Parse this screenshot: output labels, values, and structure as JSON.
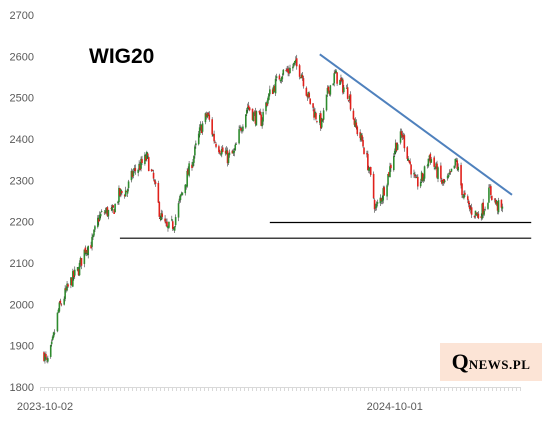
{
  "chart_data": {
    "type": "candlestick",
    "title": "WIG20",
    "xlabel": "",
    "ylabel": "",
    "ylim": [
      1800,
      2700
    ],
    "y_ticks": [
      1800,
      1900,
      2000,
      2100,
      2200,
      2300,
      2400,
      2500,
      2600,
      2700
    ],
    "x_range": [
      "2023-10-02",
      "2025-01-31"
    ],
    "x_tick_labels": [
      {
        "date": "2023-10-02",
        "label": "2023-10-02"
      },
      {
        "date": "2024-10-01",
        "label": "2024-10-01"
      }
    ],
    "grid": false,
    "legend": "none",
    "colors": {
      "up": "#2e8b2e",
      "down": "#e0201b",
      "wick": "#3a3a3a",
      "trendline": "#4f81bd",
      "support": "#000000",
      "axis": "#d9d9d9"
    },
    "price_path": [
      [
        "2023-10-02",
        1880
      ],
      [
        "2023-10-05",
        1855
      ],
      [
        "2023-10-10",
        1895
      ],
      [
        "2023-10-17",
        1985
      ],
      [
        "2023-10-24",
        2025
      ],
      [
        "2023-10-31",
        2060
      ],
      [
        "2023-11-07",
        2085
      ],
      [
        "2023-11-14",
        2135
      ],
      [
        "2023-11-21",
        2150
      ],
      [
        "2023-11-28",
        2210
      ],
      [
        "2023-12-05",
        2225
      ],
      [
        "2023-12-12",
        2220
      ],
      [
        "2023-12-19",
        2265
      ],
      [
        "2023-12-27",
        2275
      ],
      [
        "2024-01-03",
        2320
      ],
      [
        "2024-01-10",
        2335
      ],
      [
        "2024-01-17",
        2355
      ],
      [
        "2024-01-24",
        2300
      ],
      [
        "2024-01-31",
        2215
      ],
      [
        "2024-02-07",
        2180
      ],
      [
        "2024-02-14",
        2195
      ],
      [
        "2024-02-21",
        2255
      ],
      [
        "2024-02-28",
        2310
      ],
      [
        "2024-03-06",
        2360
      ],
      [
        "2024-03-13",
        2425
      ],
      [
        "2024-03-20",
        2460
      ],
      [
        "2024-03-27",
        2400
      ],
      [
        "2024-04-03",
        2375
      ],
      [
        "2024-04-10",
        2355
      ],
      [
        "2024-04-17",
        2365
      ],
      [
        "2024-04-24",
        2430
      ],
      [
        "2024-05-01",
        2480
      ],
      [
        "2024-05-08",
        2455
      ],
      [
        "2024-05-15",
        2445
      ],
      [
        "2024-05-22",
        2500
      ],
      [
        "2024-05-29",
        2530
      ],
      [
        "2024-06-05",
        2560
      ],
      [
        "2024-06-12",
        2565
      ],
      [
        "2024-06-19",
        2580
      ],
      [
        "2024-06-26",
        2560
      ],
      [
        "2024-07-03",
        2500
      ],
      [
        "2024-07-10",
        2460
      ],
      [
        "2024-07-17",
        2435
      ],
      [
        "2024-07-24",
        2520
      ],
      [
        "2024-07-31",
        2555
      ],
      [
        "2024-08-07",
        2530
      ],
      [
        "2024-08-14",
        2510
      ],
      [
        "2024-08-21",
        2430
      ],
      [
        "2024-08-28",
        2395
      ],
      [
        "2024-09-04",
        2330
      ],
      [
        "2024-09-11",
        2230
      ],
      [
        "2024-09-18",
        2265
      ],
      [
        "2024-09-25",
        2320
      ],
      [
        "2024-10-02",
        2385
      ],
      [
        "2024-10-09",
        2410
      ],
      [
        "2024-10-16",
        2345
      ],
      [
        "2024-10-23",
        2290
      ],
      [
        "2024-10-30",
        2305
      ],
      [
        "2024-11-06",
        2360
      ],
      [
        "2024-11-13",
        2325
      ],
      [
        "2024-11-20",
        2290
      ],
      [
        "2024-11-27",
        2305
      ],
      [
        "2024-12-04",
        2345
      ],
      [
        "2024-12-11",
        2265
      ],
      [
        "2024-12-18",
        2230
      ],
      [
        "2024-12-27",
        2215
      ],
      [
        "2025-01-03",
        2240
      ],
      [
        "2025-01-08",
        2275
      ],
      [
        "2025-01-15",
        2240
      ],
      [
        "2025-01-22",
        2225
      ]
    ],
    "annotations": [
      {
        "kind": "trendline",
        "from": [
          "2024-07-15",
          2605
        ],
        "to": [
          "2025-01-31",
          2265
        ]
      },
      {
        "kind": "support",
        "from": [
          "2023-12-20",
          2160
        ],
        "to": [
          "2025-02-20",
          2160
        ]
      },
      {
        "kind": "support",
        "from": [
          "2024-05-24",
          2198
        ],
        "to": [
          "2025-02-20",
          2198
        ]
      }
    ]
  },
  "watermark": {
    "q": "Q",
    "rest": "NEWS.PL"
  }
}
